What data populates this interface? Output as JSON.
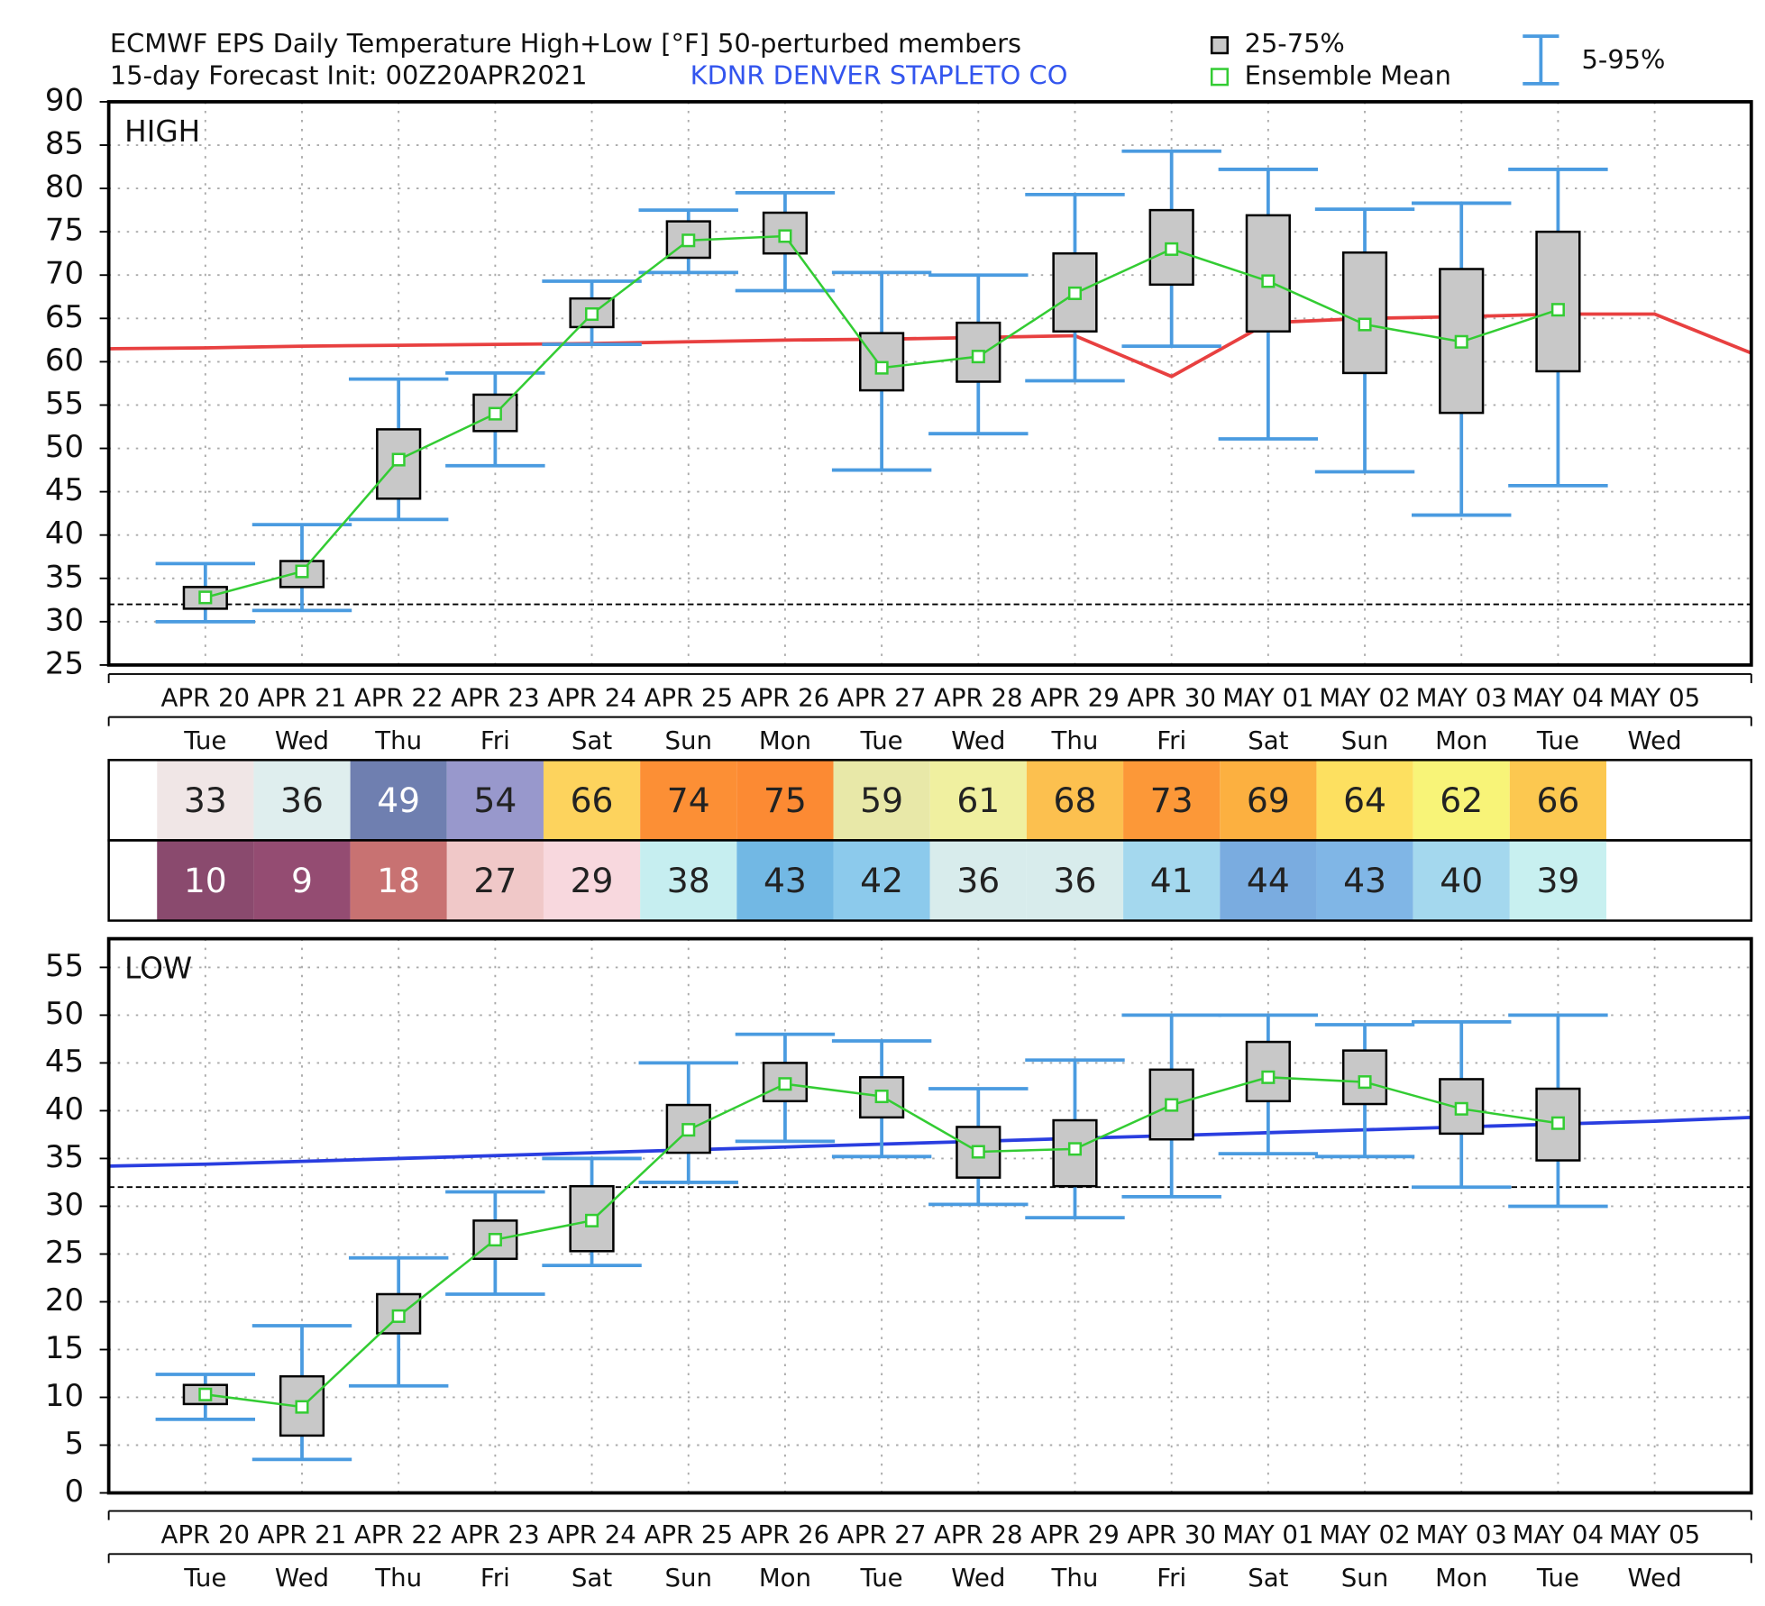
{
  "chart_data": [
    {
      "type": "box",
      "title": "ECMWF EPS Daily Temperature High+Low [°F]  50-perturbed members",
      "subtitle": "15-day Forecast Init: 00Z20APR2021",
      "station": "KDNR  DENVER STAPLETO CO",
      "station_color": "#3355ee",
      "panel_label": "HIGH",
      "categories": [
        "APR 20",
        "APR 21",
        "APR 22",
        "APR 23",
        "APR 24",
        "APR 25",
        "APR 26",
        "APR 27",
        "APR 28",
        "APR 29",
        "APR 30",
        "MAY 01",
        "MAY 02",
        "MAY 03",
        "MAY 04",
        "MAY 05"
      ],
      "weekdays": [
        "Tue",
        "Wed",
        "Thu",
        "Fri",
        "Sat",
        "Sun",
        "Mon",
        "Tue",
        "Wed",
        "Thu",
        "Fri",
        "Sat",
        "Sun",
        "Mon",
        "Tue",
        "Wed"
      ],
      "box": {
        "name": "25-75%",
        "color": "#c8c8c8",
        "q1": [
          31.5,
          34,
          44.2,
          52,
          64,
          72,
          72.5,
          56.7,
          57.7,
          63.5,
          68.9,
          63.5,
          58.7,
          54.1,
          58.9,
          null
        ],
        "q3": [
          34,
          37,
          52.2,
          56.2,
          67.3,
          76.2,
          77.2,
          63.3,
          64.5,
          72.5,
          77.5,
          76.9,
          72.6,
          70.7,
          75,
          null
        ]
      },
      "mean": {
        "name": "Ensemble Mean",
        "color": "#33cc33",
        "values": [
          32.8,
          35.8,
          48.7,
          54,
          65.5,
          74,
          74.5,
          59.3,
          60.6,
          67.9,
          73,
          69.3,
          64.3,
          62.3,
          66,
          null
        ]
      },
      "whisker": {
        "name": "5-95%",
        "color": "#4a9be0",
        "low": [
          30,
          31.3,
          41.8,
          48,
          62,
          70.3,
          68.2,
          47.5,
          51.7,
          57.8,
          61.8,
          51.1,
          47.3,
          42.3,
          45.7,
          null
        ],
        "high": [
          36.7,
          41.2,
          58,
          58.7,
          69.3,
          77.5,
          79.5,
          70.3,
          70,
          79.3,
          84.3,
          82.2,
          77.6,
          78.3,
          82.2,
          null
        ]
      },
      "reference_line": {
        "color": "#e84040",
        "edges": [
          61.5,
          61
        ],
        "values": [
          61.6,
          61.8,
          61.9,
          62,
          62.1,
          62.3,
          62.5,
          62.6,
          62.8,
          63,
          58.3,
          64.5,
          65,
          65.2,
          65.5,
          65.5
        ]
      },
      "hlines": [
        32
      ],
      "ylim": [
        25,
        90
      ],
      "yticks": [
        25,
        30,
        35,
        40,
        45,
        50,
        55,
        60,
        65,
        70,
        75,
        80,
        85,
        90
      ],
      "grid": true
    },
    {
      "type": "box",
      "panel_label": "LOW",
      "categories": [
        "APR 20",
        "APR 21",
        "APR 22",
        "APR 23",
        "APR 24",
        "APR 25",
        "APR 26",
        "APR 27",
        "APR 28",
        "APR 29",
        "APR 30",
        "MAY 01",
        "MAY 02",
        "MAY 03",
        "MAY 04",
        "MAY 05"
      ],
      "weekdays": [
        "Tue",
        "Wed",
        "Thu",
        "Fri",
        "Sat",
        "Sun",
        "Mon",
        "Tue",
        "Wed",
        "Thu",
        "Fri",
        "Sat",
        "Sun",
        "Mon",
        "Tue",
        "Wed"
      ],
      "box": {
        "color": "#c8c8c8",
        "q1": [
          9.3,
          6,
          16.7,
          24.5,
          25.3,
          35.6,
          41,
          39.3,
          33,
          32.1,
          37,
          41,
          40.7,
          37.6,
          34.8,
          null
        ],
        "q3": [
          11.3,
          12.2,
          20.8,
          28.5,
          32.1,
          40.6,
          45,
          43.5,
          38.3,
          39,
          44.3,
          47.2,
          46.3,
          43.3,
          42.3,
          null
        ]
      },
      "mean": {
        "color": "#33cc33",
        "values": [
          10.3,
          9,
          18.5,
          26.5,
          28.5,
          38,
          42.8,
          41.5,
          35.7,
          36,
          40.6,
          43.5,
          43,
          40.2,
          38.7,
          null
        ]
      },
      "whisker": {
        "color": "#4a9be0",
        "low": [
          7.7,
          3.5,
          11.2,
          20.8,
          23.8,
          32.5,
          36.8,
          35.2,
          30.2,
          28.8,
          31,
          35.5,
          35.2,
          32,
          30,
          null
        ],
        "high": [
          12.4,
          17.5,
          24.6,
          31.5,
          35,
          45,
          48,
          47.3,
          42.3,
          45.3,
          50,
          50,
          49,
          49.3,
          50,
          null
        ]
      },
      "reference_line": {
        "color": "#2a3ee0",
        "edges": [
          34.2,
          39.3
        ],
        "values": [
          34.4,
          34.7,
          35,
          35.3,
          35.6,
          35.9,
          36.2,
          36.5,
          36.8,
          37.1,
          37.4,
          37.7,
          38,
          38.3,
          38.6,
          38.9
        ]
      },
      "hlines": [
        32,
        0
      ],
      "ylim": [
        0,
        58
      ],
      "yticks": [
        0,
        5,
        10,
        15,
        20,
        25,
        30,
        35,
        40,
        45,
        50,
        55
      ],
      "grid": true
    }
  ],
  "table": {
    "rows": [
      {
        "values": [
          33,
          36,
          49,
          54,
          66,
          74,
          75,
          59,
          61,
          68,
          73,
          69,
          64,
          62,
          66
        ],
        "colors": [
          "#f0e6e6",
          "#dfeeee",
          "#6f7fb0",
          "#9898cc",
          "#fdd35d",
          "#fc8f35",
          "#fc8a33",
          "#e8e8a8",
          "#f0f0a0",
          "#fcc04f",
          "#fc9838",
          "#fcb040",
          "#fde060",
          "#f8f478",
          "#fcc850"
        ],
        "text_colors": [
          "#222",
          "#222",
          "#fff",
          "#222",
          "#222",
          "#222",
          "#222",
          "#222",
          "#222",
          "#222",
          "#222",
          "#222",
          "#222",
          "#222",
          "#222"
        ]
      },
      {
        "values": [
          10,
          9,
          18,
          27,
          29,
          38,
          43,
          42,
          36,
          36,
          41,
          44,
          43,
          40,
          39
        ],
        "colors": [
          "#8a4a6e",
          "#944c72",
          "#c87272",
          "#f0c8c8",
          "#f8d8de",
          "#c6eef0",
          "#72b8e4",
          "#8ccaec",
          "#d8ecec",
          "#d8ecec",
          "#a4d8ee",
          "#7aace0",
          "#80b6e6",
          "#a4d8ee",
          "#c8f0f0"
        ],
        "text_colors": [
          "#fff",
          "#fff",
          "#fff",
          "#222",
          "#222",
          "#222",
          "#222",
          "#222",
          "#222",
          "#222",
          "#222",
          "#222",
          "#222",
          "#222",
          "#222"
        ]
      }
    ]
  }
}
